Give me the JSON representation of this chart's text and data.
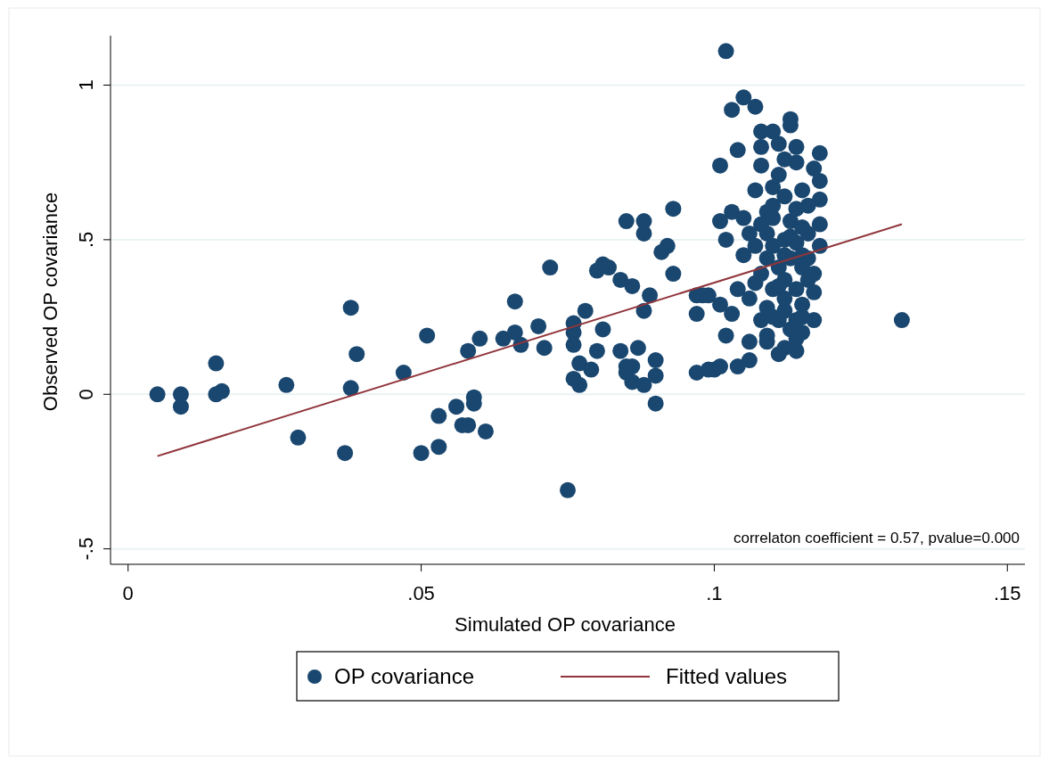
{
  "chart_data": {
    "type": "scatter",
    "xlabel": "Simulated OP covariance",
    "ylabel": "Observed OP covariance",
    "xlim": [
      -0.003,
      0.153
    ],
    "ylim": [
      -0.55,
      1.16
    ],
    "xticks": [
      {
        "value": 0,
        "label": "0"
      },
      {
        "value": 0.05,
        "label": ".05"
      },
      {
        "value": 0.1,
        "label": ".1"
      },
      {
        "value": 0.15,
        "label": ".15"
      }
    ],
    "yticks": [
      {
        "value": -0.5,
        "label": "-.5"
      },
      {
        "value": 0,
        "label": "0"
      },
      {
        "value": 0.5,
        "label": ".5"
      },
      {
        "value": 1,
        "label": "1"
      }
    ],
    "grid": "y",
    "legend": "bottom",
    "annotations": [
      "correlaton coefficient = 0.57, pvalue=0.000"
    ],
    "series": [
      {
        "name": "OP covariance",
        "marker": "circle",
        "color": "#1a476f",
        "x": [
          0.005,
          0.009,
          0.009,
          0.015,
          0.015,
          0.016,
          0.027,
          0.029,
          0.038,
          0.037,
          0.039,
          0.038,
          0.047,
          0.05,
          0.051,
          0.053,
          0.053,
          0.056,
          0.057,
          0.058,
          0.061,
          0.059,
          0.059,
          0.058,
          0.06,
          0.064,
          0.066,
          0.066,
          0.067,
          0.07,
          0.071,
          0.072,
          0.075,
          0.076,
          0.076,
          0.076,
          0.078,
          0.081,
          0.08,
          0.077,
          0.079,
          0.076,
          0.077,
          0.084,
          0.087,
          0.085,
          0.086,
          0.085,
          0.086,
          0.088,
          0.09,
          0.09,
          0.09,
          0.08,
          0.081,
          0.082,
          0.084,
          0.086,
          0.089,
          0.088,
          0.085,
          0.088,
          0.088,
          0.093,
          0.091,
          0.092,
          0.093,
          0.097,
          0.099,
          0.097,
          0.098,
          0.1,
          0.101,
          0.104,
          0.106,
          0.132,
          0.102,
          0.105,
          0.103,
          0.107,
          0.113,
          0.113,
          0.108,
          0.11,
          0.108,
          0.111,
          0.114,
          0.104,
          0.101,
          0.108,
          0.112,
          0.114,
          0.118,
          0.117,
          0.111,
          0.118,
          0.107,
          0.11,
          0.112,
          0.115,
          0.118,
          0.116,
          0.103,
          0.109,
          0.101,
          0.105,
          0.108,
          0.118,
          0.113,
          0.115,
          0.102,
          0.106,
          0.112,
          0.116,
          0.107,
          0.11,
          0.114,
          0.118,
          0.105,
          0.109,
          0.113,
          0.116,
          0.111,
          0.115,
          0.117,
          0.108,
          0.112,
          0.116,
          0.107,
          0.104,
          0.11,
          0.114,
          0.117,
          0.106,
          0.097,
          0.099,
          0.101,
          0.103,
          0.109,
          0.112,
          0.115,
          0.117,
          0.108,
          0.111,
          0.114,
          0.102,
          0.106,
          0.109,
          0.113,
          0.115,
          0.111,
          0.114,
          0.112,
          0.11,
          0.109,
          0.114,
          0.111,
          0.112,
          0.11,
          0.114,
          0.109,
          0.115,
          0.112,
          0.115,
          0.11,
          0.113
        ],
        "values": [
          0.0,
          0.0,
          -0.04,
          0.1,
          0.0,
          0.01,
          0.03,
          -0.14,
          0.02,
          -0.19,
          0.13,
          0.28,
          0.07,
          -0.19,
          0.19,
          -0.07,
          -0.17,
          -0.04,
          -0.1,
          -0.1,
          -0.12,
          -0.01,
          -0.03,
          0.14,
          0.18,
          0.18,
          0.2,
          0.3,
          0.16,
          0.22,
          0.15,
          0.41,
          -0.31,
          0.23,
          0.2,
          0.16,
          0.27,
          0.21,
          0.14,
          0.1,
          0.08,
          0.05,
          0.03,
          0.14,
          0.15,
          0.09,
          0.09,
          0.07,
          0.04,
          0.03,
          0.11,
          0.06,
          -0.03,
          0.4,
          0.42,
          0.41,
          0.37,
          0.35,
          0.32,
          0.27,
          0.56,
          0.56,
          0.52,
          0.6,
          0.46,
          0.48,
          0.39,
          0.07,
          0.08,
          0.26,
          0.32,
          0.08,
          0.09,
          0.09,
          0.11,
          0.24,
          1.11,
          0.96,
          0.92,
          0.93,
          0.89,
          0.87,
          0.85,
          0.85,
          0.8,
          0.81,
          0.8,
          0.79,
          0.74,
          0.74,
          0.76,
          0.75,
          0.78,
          0.73,
          0.71,
          0.69,
          0.66,
          0.67,
          0.64,
          0.66,
          0.63,
          0.61,
          0.59,
          0.59,
          0.56,
          0.57,
          0.55,
          0.55,
          0.56,
          0.54,
          0.5,
          0.52,
          0.5,
          0.52,
          0.48,
          0.48,
          0.49,
          0.48,
          0.45,
          0.44,
          0.44,
          0.44,
          0.41,
          0.41,
          0.39,
          0.39,
          0.37,
          0.37,
          0.36,
          0.34,
          0.34,
          0.34,
          0.33,
          0.31,
          0.32,
          0.32,
          0.29,
          0.26,
          0.28,
          0.27,
          0.29,
          0.24,
          0.24,
          0.24,
          0.24,
          0.19,
          0.17,
          0.17,
          0.21,
          0.2,
          0.13,
          0.14,
          0.15,
          0.61,
          0.52,
          0.6,
          0.35,
          0.31,
          0.25,
          0.18,
          0.19,
          0.25,
          0.45,
          0.45,
          0.57,
          0.51
        ]
      },
      {
        "name": "Fitted values",
        "type": "line",
        "color": "#90353b",
        "x": [
          0.005,
          0.132
        ],
        "values": [
          -0.2,
          0.55
        ]
      }
    ]
  }
}
